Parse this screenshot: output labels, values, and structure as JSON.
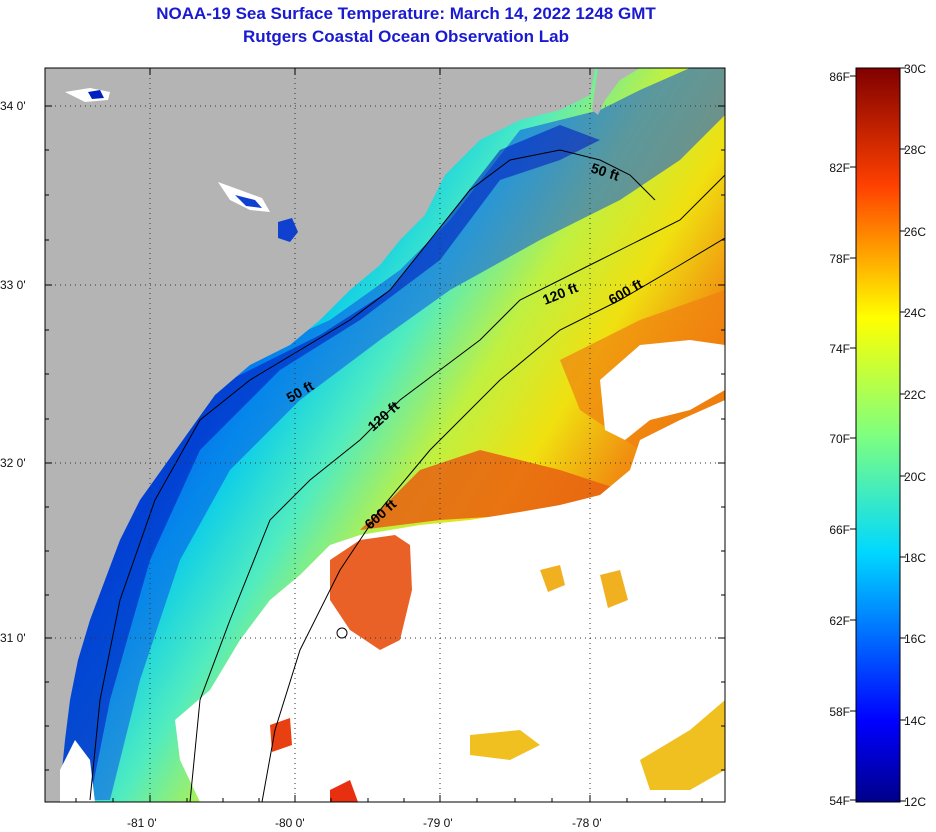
{
  "title": {
    "line1": "NOAA-19 Sea Surface Temperature:  March 14, 2022 1248 GMT",
    "line2": "Rutgers Coastal Ocean Observation Lab"
  },
  "map": {
    "lat_labels": [
      "34 0'",
      "33 0'",
      "32 0'",
      "31 0'"
    ],
    "lon_labels": [
      "-81 0'",
      "-80 0'",
      "-79 0'",
      "-78 0'"
    ],
    "isobath_labels": [
      "50 ft",
      "120 ft",
      "600 ft",
      "50 ft",
      "120 ft",
      "600 ft"
    ]
  },
  "colorbar": {
    "fahrenheit": [
      "86F",
      "82F",
      "78F",
      "74F",
      "70F",
      "66F",
      "62F",
      "58F",
      "54F"
    ],
    "celsius": [
      "30C",
      "28C",
      "26C",
      "24C",
      "22C",
      "20C",
      "18C",
      "16C",
      "14C",
      "12C"
    ]
  },
  "colors": {
    "title": "#1a1ad0",
    "land": "#b4b4b4",
    "cloud": "#ffffff"
  }
}
